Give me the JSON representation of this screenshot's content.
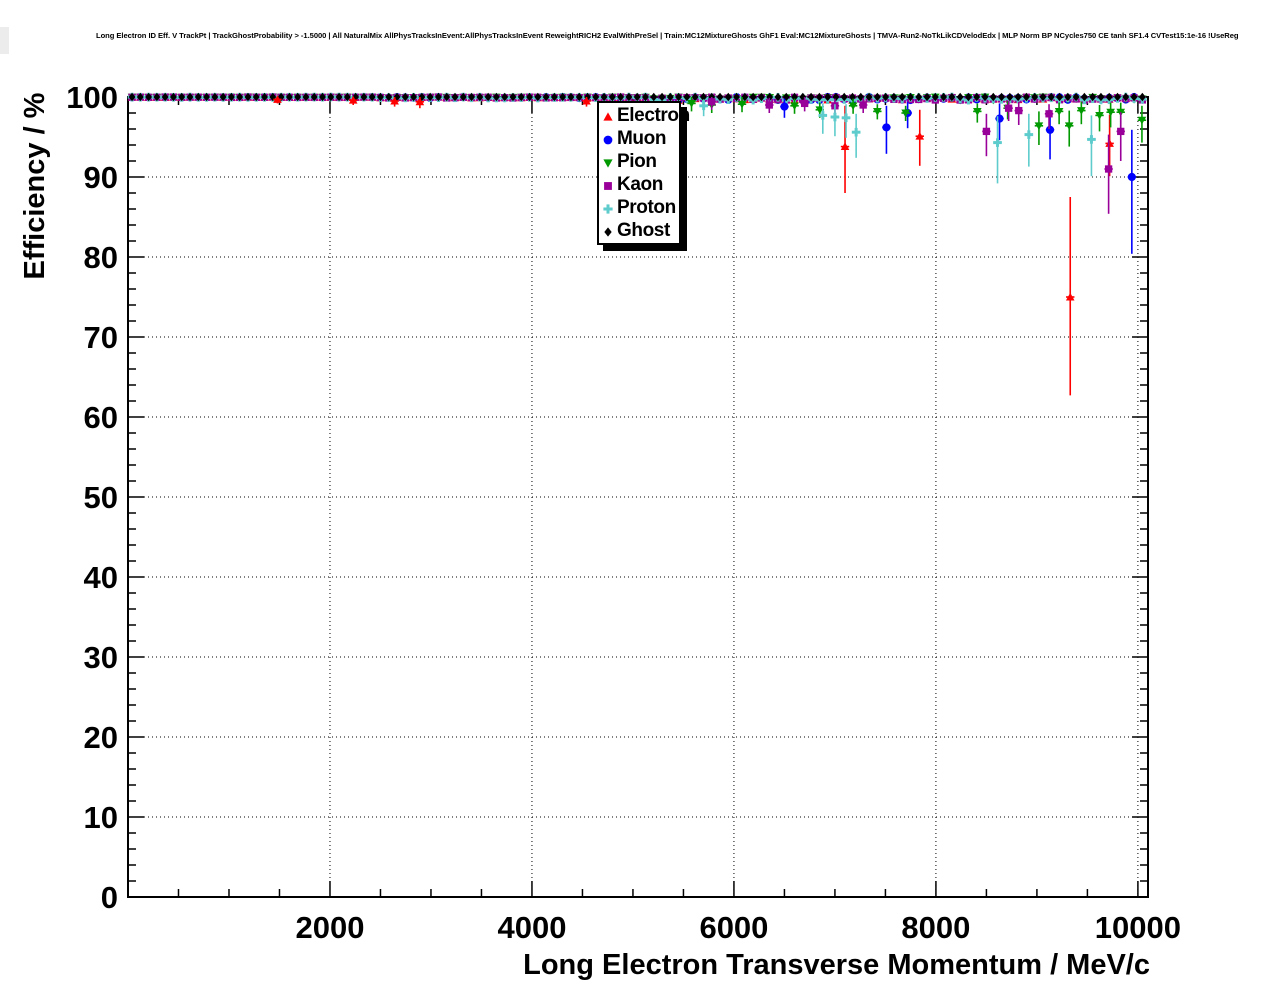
{
  "chart_data": {
    "type": "scatter",
    "title": "Long Electron ID Eff. V TrackPt | TrackGhostProbability > -1.5000 | All NaturalMix AllPhysTracksInEvent:AllPhysTracksInEvent ReweightRICH2 EvalWithPreSel | Train:MC12MixtureGhosts GhF1 Eval:MC12MixtureGhosts | TMVA-Run2-NoTkLikCDVelodEdx | MLP Norm BP NCycles750 CE tanh SF1.4 CVTest15:1e-16 !UseReg",
    "xlabel": "Long Electron Transverse Momentum / MeV/c",
    "ylabel": "Efficiency / %",
    "xlim": [
      0,
      10100
    ],
    "ylim": [
      0,
      100
    ],
    "x_ticks": [
      2000,
      4000,
      6000,
      8000,
      10000
    ],
    "x_minor_step": 500,
    "y_ticks": [
      0,
      10,
      20,
      30,
      40,
      50,
      60,
      70,
      80,
      90,
      100
    ],
    "y_minor_step": 2,
    "grid": "dotted lines at every major tick, ticks mirrored on all four frame sides",
    "legend_position": "top, right of center, inside plot",
    "baseline": {
      "description": "All six species sit at ~100% efficiency in every bin across the full momentum range; dense overlapping markers along the 100% line.",
      "x_start": 40,
      "x_step": 82,
      "x_end": 10060,
      "efficiency_percent": 100
    },
    "default_error_percent": {
      "lo": 1.0,
      "hi": 0.9
    },
    "series": [
      {
        "name": "Electron",
        "color": "#ff0000",
        "marker": "triangle-up",
        "outliers": [
          {
            "x": 1480,
            "y": 99.7,
            "lo": 99.2,
            "hi": 100
          },
          {
            "x": 2230,
            "y": 99.6,
            "lo": 99.0,
            "hi": 100
          },
          {
            "x": 2640,
            "y": 99.5,
            "lo": 98.8,
            "hi": 100
          },
          {
            "x": 2890,
            "y": 99.4,
            "lo": 98.6,
            "hi": 100
          },
          {
            "x": 4540,
            "y": 99.5,
            "lo": 98.8,
            "hi": 100
          },
          {
            "x": 7100,
            "y": 93.8,
            "lo": 88.0,
            "hi": 98.9
          },
          {
            "x": 7840,
            "y": 95.1,
            "lo": 91.4,
            "hi": 98.4
          },
          {
            "x": 9330,
            "y": 75.0,
            "lo": 62.7,
            "hi": 87.5
          },
          {
            "x": 9720,
            "y": 94.2,
            "lo": 90.1,
            "hi": 97.8
          }
        ]
      },
      {
        "name": "Muon",
        "color": "#0000ff",
        "marker": "circle",
        "outliers": [
          {
            "x": 6500,
            "y": 98.8,
            "lo": 97.4,
            "hi": 99.8
          },
          {
            "x": 7510,
            "y": 96.2,
            "lo": 92.9,
            "hi": 98.9
          },
          {
            "x": 7720,
            "y": 98.0,
            "lo": 96.1,
            "hi": 99.4
          },
          {
            "x": 8630,
            "y": 97.3,
            "lo": 94.6,
            "hi": 99.2
          },
          {
            "x": 9130,
            "y": 95.9,
            "lo": 92.2,
            "hi": 98.4
          },
          {
            "x": 9940,
            "y": 90.0,
            "lo": 80.4,
            "hi": 95.9
          }
        ]
      },
      {
        "name": "Pion",
        "color": "#009900",
        "marker": "triangle-down",
        "outliers": [
          {
            "x": 5580,
            "y": 99.2
          },
          {
            "x": 5780,
            "y": 99.0
          },
          {
            "x": 6080,
            "y": 99.1
          },
          {
            "x": 6600,
            "y": 98.9
          },
          {
            "x": 6850,
            "y": 98.4
          },
          {
            "x": 7180,
            "y": 98.9
          },
          {
            "x": 7420,
            "y": 98.2
          },
          {
            "x": 7700,
            "y": 98.0
          },
          {
            "x": 8410,
            "y": 98.2,
            "lo": 96.8,
            "hi": 99.2
          },
          {
            "x": 8710,
            "y": 98.6,
            "lo": 97.2,
            "hi": 99.5
          },
          {
            "x": 9020,
            "y": 96.4,
            "lo": 94.0,
            "hi": 98.2
          },
          {
            "x": 9220,
            "y": 98.2,
            "lo": 96.6,
            "hi": 99.3
          },
          {
            "x": 9320,
            "y": 96.4,
            "lo": 93.8,
            "hi": 98.3
          },
          {
            "x": 9440,
            "y": 98.3,
            "lo": 96.6,
            "hi": 99.4
          },
          {
            "x": 9620,
            "y": 97.7,
            "lo": 95.7,
            "hi": 99.0
          },
          {
            "x": 9730,
            "y": 98.1,
            "lo": 96.2,
            "hi": 99.3
          },
          {
            "x": 9830,
            "y": 98.1,
            "lo": 96.0,
            "hi": 99.3
          },
          {
            "x": 10040,
            "y": 97.1,
            "lo": 94.3,
            "hi": 98.9
          }
        ]
      },
      {
        "name": "Kaon",
        "color": "#990099",
        "marker": "square",
        "outliers": [
          {
            "x": 5780,
            "y": 99.4
          },
          {
            "x": 6350,
            "y": 99.0
          },
          {
            "x": 6700,
            "y": 99.2
          },
          {
            "x": 7000,
            "y": 98.9
          },
          {
            "x": 7280,
            "y": 99.0
          },
          {
            "x": 8500,
            "y": 95.7,
            "lo": 92.6,
            "hi": 97.9
          },
          {
            "x": 8720,
            "y": 98.6,
            "lo": 97.0,
            "hi": 99.5
          },
          {
            "x": 8820,
            "y": 98.3,
            "lo": 96.5,
            "hi": 99.4
          },
          {
            "x": 9120,
            "y": 97.9,
            "lo": 96.0,
            "hi": 99.1
          },
          {
            "x": 9710,
            "y": 91.0,
            "lo": 85.4,
            "hi": 95.3
          },
          {
            "x": 9830,
            "y": 95.7,
            "lo": 92.0,
            "hi": 98.1
          }
        ]
      },
      {
        "name": "Proton",
        "color": "#5ecccc",
        "marker": "plus",
        "outliers": [
          {
            "x": 5700,
            "y": 98.9,
            "lo": 97.6,
            "hi": 99.7
          },
          {
            "x": 6880,
            "y": 97.7,
            "lo": 95.4,
            "hi": 99.2
          },
          {
            "x": 7000,
            "y": 97.5,
            "lo": 95.1,
            "hi": 99.1
          },
          {
            "x": 7110,
            "y": 97.4,
            "lo": 94.9,
            "hi": 99.1
          },
          {
            "x": 7210,
            "y": 95.6,
            "lo": 92.4,
            "hi": 97.9
          },
          {
            "x": 8610,
            "y": 94.3,
            "lo": 89.2,
            "hi": 97.6
          },
          {
            "x": 8920,
            "y": 95.3,
            "lo": 91.3,
            "hi": 97.9
          },
          {
            "x": 9540,
            "y": 94.7,
            "lo": 90.1,
            "hi": 97.7
          }
        ]
      },
      {
        "name": "Ghost",
        "color": "#000000",
        "marker": "diamond",
        "outliers": []
      }
    ]
  }
}
